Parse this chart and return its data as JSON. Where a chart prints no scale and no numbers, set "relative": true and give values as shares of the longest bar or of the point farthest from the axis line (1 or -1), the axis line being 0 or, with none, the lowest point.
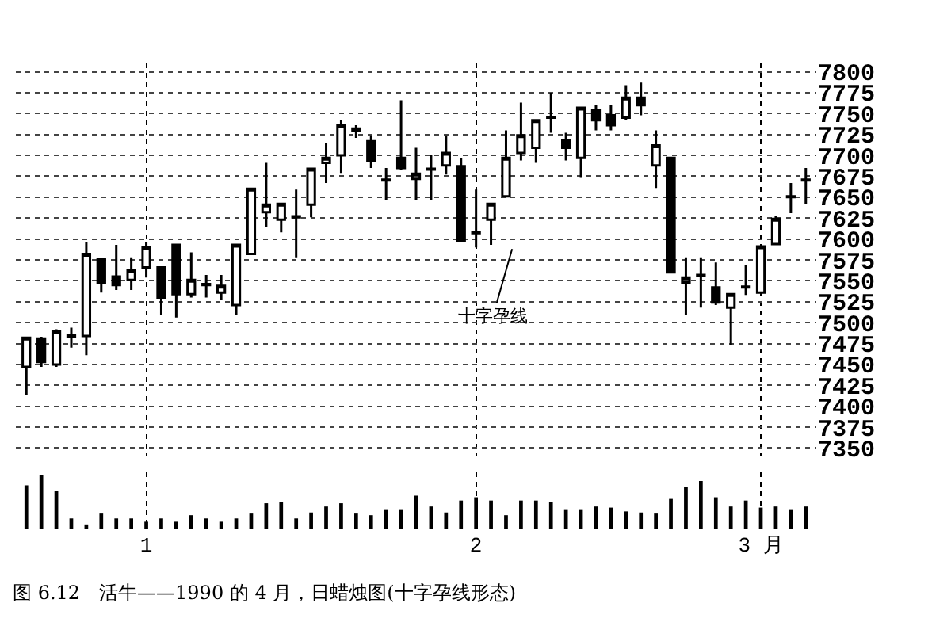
{
  "chart_data": [
    {
      "type": "candlestick",
      "categories": [
        null,
        null,
        null,
        null,
        null,
        null,
        null,
        null,
        null,
        null,
        null,
        null,
        null,
        null,
        null,
        null,
        null,
        null,
        null,
        null,
        null,
        null,
        null,
        null,
        null,
        null,
        null,
        null,
        null,
        null,
        null,
        null,
        null,
        null,
        null,
        null,
        null,
        null,
        null,
        null,
        null,
        null,
        null,
        null,
        null,
        null,
        null,
        null,
        null,
        null,
        null,
        null,
        null
      ],
      "ohlc": [
        [
          7447,
          7483,
          7414,
          7482
        ],
        [
          7481,
          7483,
          7447,
          7453
        ],
        [
          7450,
          7492,
          7447,
          7490
        ],
        [
          7483,
          7494,
          7470,
          7485
        ],
        [
          7484,
          7596,
          7461,
          7582
        ],
        [
          7576,
          7576,
          7536,
          7548
        ],
        [
          7555,
          7593,
          7539,
          7545
        ],
        [
          7551,
          7578,
          7539,
          7563
        ],
        [
          7566,
          7596,
          7554,
          7590
        ],
        [
          7566,
          7566,
          7509,
          7530
        ],
        [
          7593,
          7593,
          7506,
          7534
        ],
        [
          7534,
          7584,
          7530,
          7551
        ],
        [
          7545,
          7557,
          7530,
          7546
        ],
        [
          7536,
          7557,
          7527,
          7544
        ],
        [
          7521,
          7593,
          7509,
          7593
        ],
        [
          7582,
          7660,
          7582,
          7660
        ],
        [
          7632,
          7691,
          7614,
          7641
        ],
        [
          7623,
          7642,
          7608,
          7642
        ],
        [
          7626,
          7659,
          7578,
          7627
        ],
        [
          7641,
          7684,
          7626,
          7684
        ],
        [
          7691,
          7715,
          7667,
          7697
        ],
        [
          7700,
          7742,
          7679,
          7736
        ],
        [
          7730,
          7736,
          7721,
          7732
        ],
        [
          7717,
          7724,
          7685,
          7693
        ],
        [
          7671,
          7685,
          7647,
          7670
        ],
        [
          7697,
          7766,
          7682,
          7685
        ],
        [
          7672,
          7709,
          7647,
          7678
        ],
        [
          7683,
          7700,
          7647,
          7684
        ],
        [
          7688,
          7724,
          7677,
          7703
        ],
        [
          7687,
          7697,
          7598,
          7598
        ],
        [
          7607,
          7659,
          7590,
          7608
        ],
        [
          7623,
          7642,
          7593,
          7642
        ],
        [
          7651,
          7730,
          7650,
          7697
        ],
        [
          7703,
          7763,
          7694,
          7724
        ],
        [
          7709,
          7742,
          7691,
          7742
        ],
        [
          7746,
          7775,
          7727,
          7745
        ],
        [
          7718,
          7727,
          7694,
          7709
        ],
        [
          7697,
          7757,
          7673,
          7757
        ],
        [
          7754,
          7760,
          7730,
          7742
        ],
        [
          7748,
          7760,
          7730,
          7736
        ],
        [
          7745,
          7784,
          7742,
          7769
        ],
        [
          7769,
          7787,
          7748,
          7760
        ],
        [
          7688,
          7730,
          7661,
          7712
        ],
        [
          7697,
          7697,
          7560,
          7560
        ],
        [
          7548,
          7578,
          7509,
          7554
        ],
        [
          7557,
          7578,
          7518,
          7556
        ],
        [
          7542,
          7572,
          7521,
          7524
        ],
        [
          7518,
          7534,
          7473,
          7534
        ],
        [
          7542,
          7569,
          7533,
          7543
        ],
        [
          7536,
          7591,
          7536,
          7591
        ],
        [
          7594,
          7627,
          7594,
          7624
        ],
        [
          7650,
          7667,
          7631,
          7651
        ],
        [
          7670,
          7685,
          7642,
          7671
        ]
      ],
      "ylim": [
        7340,
        7810
      ],
      "yticks": [
        7350,
        7375,
        7400,
        7425,
        7450,
        7475,
        7500,
        7525,
        7550,
        7575,
        7600,
        7625,
        7650,
        7675,
        7700,
        7725,
        7750,
        7775,
        7800
      ],
      "grid": true,
      "tick_labels": "y",
      "annotations": [
        "十字孕线"
      ]
    },
    {
      "type": "bar",
      "relative": true,
      "color": "#000000",
      "categories": [
        null,
        null,
        null,
        null,
        null,
        null,
        null,
        null,
        "1",
        null,
        null,
        null,
        null,
        null,
        null,
        null,
        null,
        null,
        null,
        null,
        null,
        null,
        null,
        null,
        null,
        null,
        null,
        null,
        null,
        null,
        "2",
        null,
        null,
        null,
        null,
        null,
        null,
        null,
        null,
        null,
        null,
        null,
        null,
        null,
        null,
        null,
        null,
        null,
        null,
        "3 月",
        null,
        null,
        null
      ],
      "values": [
        0.81,
        1,
        0.7,
        0.2,
        0.09,
        0.29,
        0.2,
        0.2,
        0.14,
        0.2,
        0.14,
        0.26,
        0.2,
        0.14,
        0.2,
        0.29,
        0.48,
        0.51,
        0.2,
        0.31,
        0.42,
        0.48,
        0.29,
        0.26,
        0.37,
        0.37,
        0.62,
        0.42,
        0.31,
        0.53,
        0.59,
        0.53,
        0.26,
        0.53,
        0.53,
        0.51,
        0.37,
        0.37,
        0.42,
        0.4,
        0.33,
        0.31,
        0.29,
        0.56,
        0.78,
        0.89,
        0.59,
        0.42,
        0.53,
        0.4,
        0.42,
        0.37,
        0.42
      ],
      "grid": "x",
      "tick_labels": "x",
      "annotations": [
        "图 6.12　活牛——1990 的 4 月，日蜡烛图(十字孕线形态)"
      ]
    }
  ]
}
